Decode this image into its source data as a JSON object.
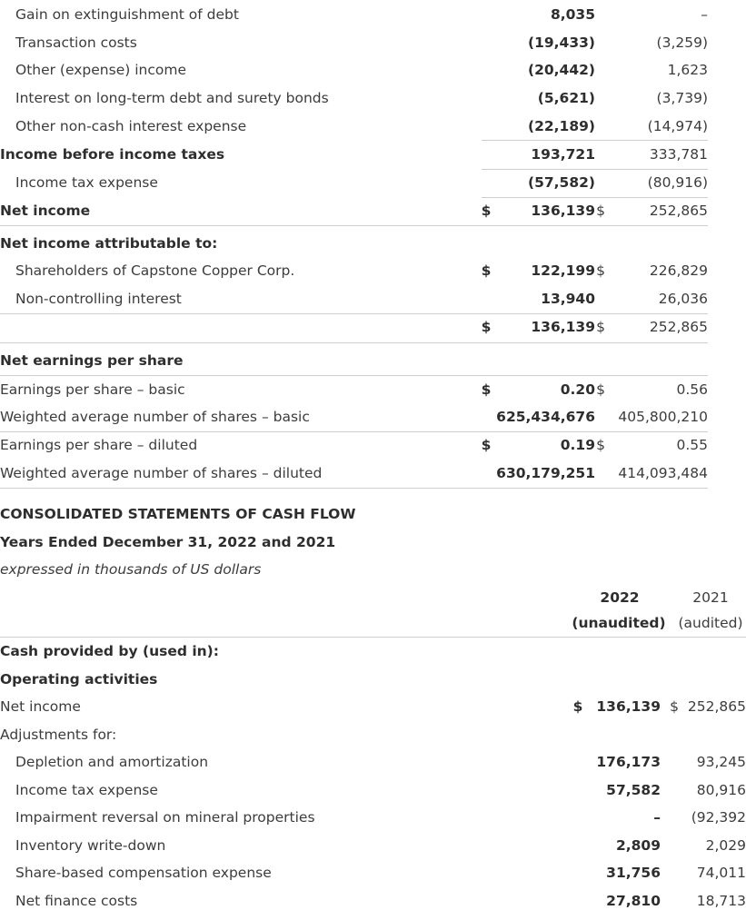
{
  "income_statement": {
    "rows": [
      {
        "label": "Gain on extinguishment of debt",
        "current": "8,035",
        "prior": "–"
      },
      {
        "label": "Transaction costs",
        "current": "(19,433)",
        "prior": "(3,259)"
      },
      {
        "label": "Other (expense) income",
        "current": "(20,442)",
        "prior": "1,623"
      },
      {
        "label": "Interest on long-term debt and surety bonds",
        "current": "(5,621)",
        "prior": "(3,739)"
      },
      {
        "label": "Other non-cash interest expense",
        "current": "(22,189)",
        "prior": "(14,974)"
      },
      {
        "label": "Income before income taxes",
        "current": "193,721",
        "prior": "333,781"
      },
      {
        "label": "Income tax expense",
        "current": "(57,582)",
        "prior": "(80,916)"
      },
      {
        "label": "Net income",
        "cur_sign": "$",
        "current": "136,139",
        "prior_sign": "$",
        "prior": "252,865"
      },
      {
        "label": "Net income attributable to:"
      },
      {
        "label": "Shareholders of Capstone Copper Corp.",
        "cur_sign": "$",
        "current": "122,199",
        "prior_sign": "$",
        "prior": "226,829"
      },
      {
        "label": "Non-controlling interest",
        "current": "13,940",
        "prior": "26,036"
      },
      {
        "cur_sign": "$",
        "current": "136,139",
        "prior_sign": "$",
        "prior": "252,865"
      },
      {
        "label": "Net earnings per share"
      },
      {
        "label": "Earnings per share – basic",
        "cur_sign": "$",
        "current": "0.20",
        "prior_sign": "$",
        "prior": "0.56"
      },
      {
        "label": "Weighted average number of shares – basic",
        "current": "625,434,676",
        "prior": "405,800,210"
      },
      {
        "label": "Earnings per share – diluted",
        "cur_sign": "$",
        "current": "0.19",
        "prior_sign": "$",
        "prior": "0.55"
      },
      {
        "label": "Weighted average number of shares – diluted",
        "current": "630,179,251",
        "prior": "414,093,484"
      }
    ]
  },
  "cash_flow": {
    "title": "CONSOLIDATED STATEMENTS OF CASH FLOW",
    "period": "Years Ended December 31, 2022 and 2021",
    "units": "expressed in thousands of US dollars",
    "header": {
      "current_year": "2022",
      "current_status": "(unaudited)",
      "prior_year": "2021",
      "prior_status": "(audited)"
    },
    "rows": [
      {
        "label": "Cash provided by (used in):"
      },
      {
        "label": "Operating activities"
      },
      {
        "label": "Net income",
        "cur_sign": "$",
        "current": "136,139",
        "prior_sign": "$",
        "prior": "252,865"
      },
      {
        "label": "Adjustments for:"
      },
      {
        "label": "Depletion and amortization",
        "current": "176,173",
        "prior": "93,245"
      },
      {
        "label": "Income tax expense",
        "current": "57,582",
        "prior": "80,916"
      },
      {
        "label": "Impairment reversal on mineral properties",
        "current": "–",
        "prior": "(92,392"
      },
      {
        "label": "Inventory write-down",
        "current": "2,809",
        "prior": "2,029"
      },
      {
        "label": "Share-based compensation expense",
        "current": "31,756",
        "prior": "74,011"
      },
      {
        "label": "Net finance costs",
        "current": "27,810",
        "prior": "18,713"
      }
    ]
  }
}
